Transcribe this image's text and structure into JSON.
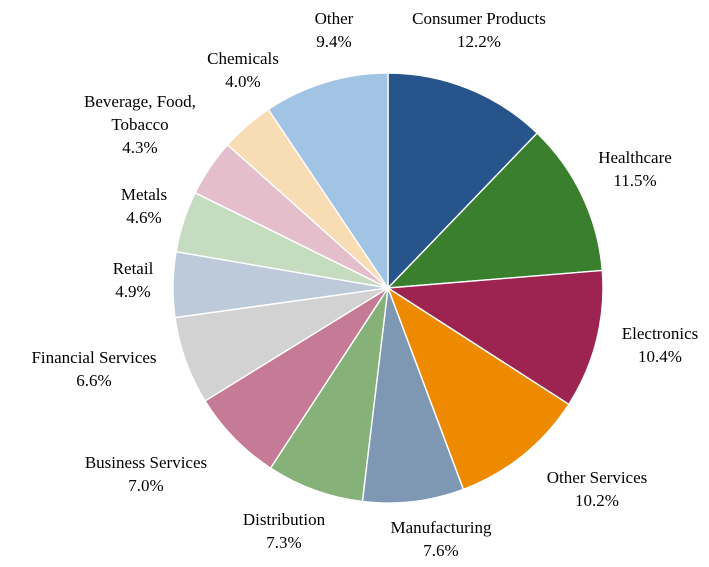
{
  "chart_data": {
    "type": "pie",
    "title": "",
    "start_angle_deg": 0,
    "direction": "clockwise",
    "slices": [
      {
        "name": "Consumer Products",
        "value": 12.2,
        "display": "12.2%",
        "color": "#27548A"
      },
      {
        "name": "Healthcare",
        "value": 11.5,
        "display": "11.5%",
        "color": "#3A7F2E"
      },
      {
        "name": "Electronics",
        "value": 10.4,
        "display": "10.4%",
        "color": "#9D2350"
      },
      {
        "name": "Other Services",
        "value": 10.2,
        "display": "10.2%",
        "color": "#EE8A00"
      },
      {
        "name": "Manufacturing",
        "value": 7.6,
        "display": "7.6%",
        "color": "#7E98B3"
      },
      {
        "name": "Distribution",
        "value": 7.3,
        "display": "7.3%",
        "color": "#86B27A"
      },
      {
        "name": "Business Services",
        "value": 7.0,
        "display": "7.0%",
        "color": "#C57B96"
      },
      {
        "name": "Financial Services",
        "value": 6.6,
        "display": "6.6%",
        "color": "#D2D2D2"
      },
      {
        "name": "Retail",
        "value": 4.9,
        "display": "4.9%",
        "color": "#BCCADA"
      },
      {
        "name": "Metals",
        "value": 4.6,
        "display": "4.6%",
        "color": "#C6DCC0"
      },
      {
        "name": "Beverage, Food, Tobacco",
        "value": 4.3,
        "display": "4.3%",
        "color": "#E4BFCB"
      },
      {
        "name": "Chemicals",
        "value": 4.0,
        "display": "4.0%",
        "color": "#F8DCB3"
      },
      {
        "name": "Other",
        "value": 9.4,
        "display": "9.4%",
        "color": "#A2C4E4"
      }
    ]
  }
}
